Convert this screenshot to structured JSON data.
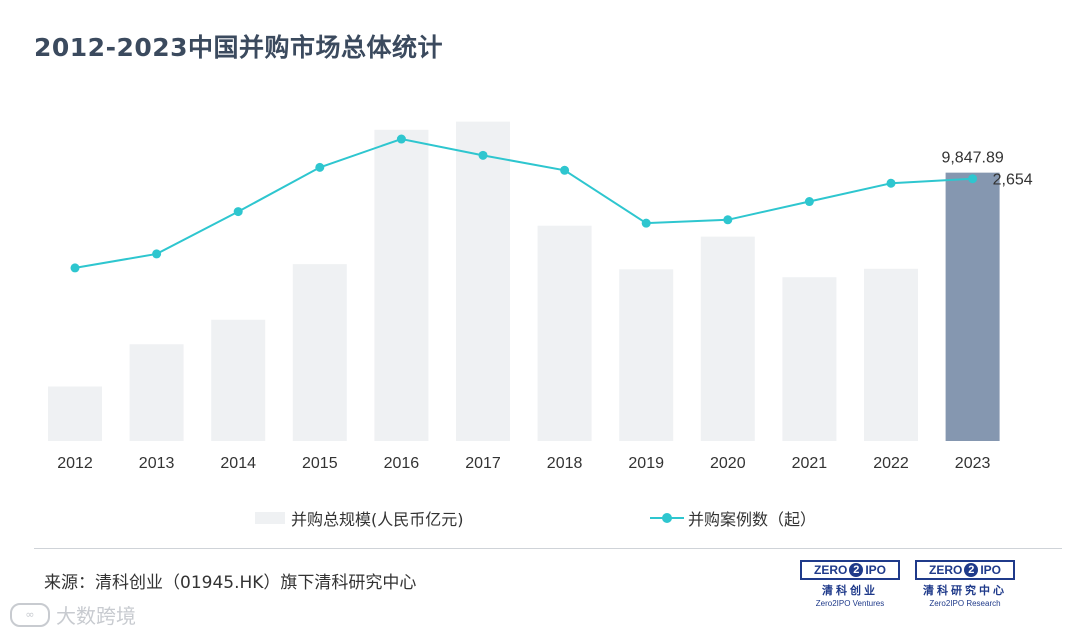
{
  "title": "2012-2023中国并购市场总体统计",
  "chart_data": {
    "type": "bar",
    "categories": [
      "2012",
      "2013",
      "2014",
      "2015",
      "2016",
      "2017",
      "2018",
      "2019",
      "2020",
      "2021",
      "2022",
      "2023"
    ],
    "series": [
      {
        "name": "并购总规模(人民币亿元)",
        "type": "bar",
        "values": [
          2000,
          3550,
          4450,
          6490,
          11420,
          11720,
          7900,
          6300,
          7500,
          6010,
          6320,
          9847.89
        ],
        "color": "#eff1f3",
        "highlight_color": "#8597b0",
        "highlight_index": 11,
        "last_label": "9,847.89"
      },
      {
        "name": "并购案例数（起）",
        "type": "line",
        "values": [
          800,
          1090,
          1970,
          2890,
          3480,
          3140,
          2830,
          1730,
          1800,
          2180,
          2560,
          2654
        ],
        "color": "#2ec6cf",
        "last_label": "2,654"
      }
    ],
    "bar_axis_range": [
      0,
      12000
    ],
    "line_axis_range": [
      -2800,
      4000
    ],
    "grid": false,
    "legend_position": "bottom"
  },
  "source": "来源：清科创业（01945.HK）旗下清科研究中心",
  "logos": [
    {
      "mark_left": "ZERO",
      "mark_mid": "2",
      "mark_right": "IPO",
      "cn": "清科创业",
      "en": "Zero2IPO Ventures"
    },
    {
      "mark_left": "ZERO",
      "mark_mid": "2",
      "mark_right": "IPO",
      "cn": "清科研究中心",
      "en": "Zero2IPO Research"
    }
  ],
  "watermark": {
    "icon": "kuajing-logo-icon",
    "text": "大数跨境"
  }
}
